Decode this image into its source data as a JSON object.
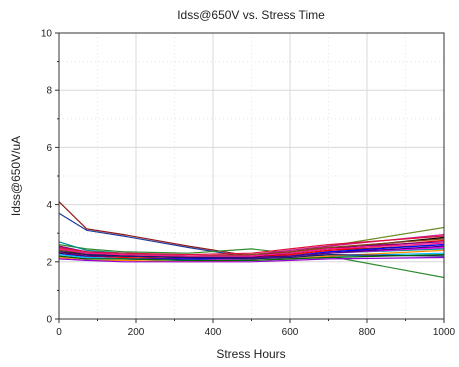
{
  "chart_data": {
    "type": "line",
    "title": "Idss@650V vs. Stress Time",
    "xlabel": "Stress Hours",
    "ylabel": "Idss@650V/uA",
    "xlim": [
      0,
      1000
    ],
    "ylim": [
      0,
      10
    ],
    "xticks": [
      0,
      200,
      400,
      600,
      800,
      1000
    ],
    "yticks": [
      0,
      2,
      4,
      6,
      8,
      10
    ],
    "grid": true,
    "legend": "none",
    "x": [
      0,
      72,
      168,
      336,
      500,
      600,
      700,
      1000
    ],
    "series": [
      {
        "color": "#8b1a1a",
        "values": [
          4.1,
          3.15,
          2.95,
          2.55,
          2.2,
          2.25,
          2.4,
          2.6
        ]
      },
      {
        "color": "#1f3b99",
        "values": [
          3.7,
          3.1,
          2.9,
          2.5,
          2.15,
          2.2,
          2.35,
          2.5
        ]
      },
      {
        "color": "#2e8b2e",
        "values": [
          2.6,
          2.45,
          2.35,
          2.3,
          2.45,
          2.3,
          2.2,
          1.45
        ]
      },
      {
        "color": "#6b8e23",
        "values": [
          2.5,
          2.3,
          2.2,
          2.15,
          2.2,
          2.35,
          2.55,
          3.2
        ]
      },
      {
        "color": "#c71585",
        "values": [
          2.45,
          2.3,
          2.25,
          2.2,
          2.25,
          2.4,
          2.55,
          2.95
        ]
      },
      {
        "color": "#000000",
        "values": [
          2.4,
          2.25,
          2.2,
          2.15,
          2.15,
          2.3,
          2.45,
          2.85
        ]
      },
      {
        "color": "#ff0000",
        "values": [
          2.35,
          2.2,
          2.15,
          2.1,
          2.15,
          2.25,
          2.4,
          2.75
        ]
      },
      {
        "color": "#0000ff",
        "values": [
          2.3,
          2.15,
          2.1,
          2.1,
          2.1,
          2.2,
          2.35,
          2.6
        ]
      },
      {
        "color": "#800080",
        "values": [
          2.55,
          2.35,
          2.25,
          2.2,
          2.2,
          2.35,
          2.5,
          2.7
        ]
      },
      {
        "color": "#008b8b",
        "values": [
          2.7,
          2.4,
          2.3,
          2.2,
          2.15,
          2.2,
          2.3,
          2.45
        ]
      },
      {
        "color": "#ff00ff",
        "values": [
          2.2,
          2.1,
          2.1,
          2.05,
          2.1,
          2.2,
          2.3,
          2.5
        ]
      },
      {
        "color": "#00bfff",
        "values": [
          2.25,
          2.15,
          2.1,
          2.05,
          2.05,
          2.1,
          2.2,
          2.3
        ]
      },
      {
        "color": "#8b4513",
        "values": [
          2.4,
          2.3,
          2.25,
          2.2,
          2.25,
          2.35,
          2.5,
          2.8
        ]
      },
      {
        "color": "#ff8c00",
        "values": [
          2.15,
          2.05,
          2.05,
          2.0,
          2.05,
          2.1,
          2.2,
          2.4
        ]
      },
      {
        "color": "#4b0082",
        "values": [
          2.3,
          2.2,
          2.2,
          2.15,
          2.15,
          2.2,
          2.3,
          2.55
        ]
      },
      {
        "color": "#dc143c",
        "values": [
          2.5,
          2.35,
          2.3,
          2.25,
          2.3,
          2.45,
          2.6,
          2.9
        ]
      },
      {
        "color": "#191970",
        "values": [
          2.35,
          2.25,
          2.2,
          2.15,
          2.1,
          2.15,
          2.25,
          2.2
        ]
      },
      {
        "color": "#9400d3",
        "values": [
          2.1,
          2.05,
          2.0,
          2.0,
          2.0,
          2.05,
          2.1,
          2.15
        ]
      },
      {
        "color": "#006400",
        "values": [
          2.2,
          2.1,
          2.1,
          2.05,
          2.05,
          2.1,
          2.15,
          2.25
        ]
      },
      {
        "color": "#ff1493",
        "values": [
          2.45,
          2.3,
          2.25,
          2.2,
          2.2,
          2.3,
          2.45,
          2.65
        ]
      }
    ]
  }
}
